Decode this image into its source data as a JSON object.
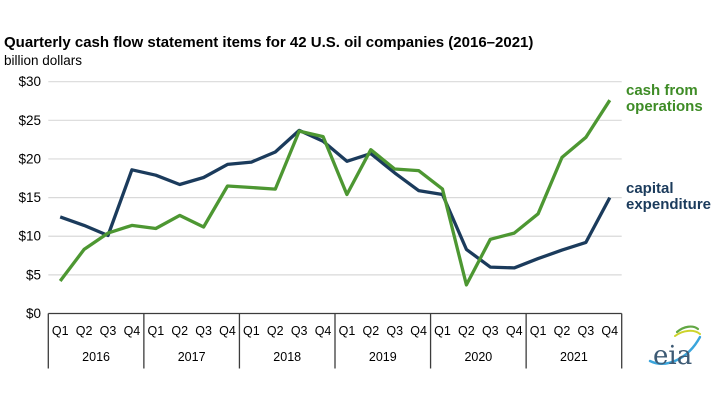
{
  "header": {
    "title": "Quarterly cash flow statement items for 42 U.S. oil companies (2016–2021)",
    "subtitle": "billion dollars"
  },
  "legend": {
    "cash_from_operations": "cash from\noperations",
    "capital_expenditure": "capital\nexpenditure"
  },
  "logo": {
    "text": "eia"
  },
  "colors": {
    "green_line": "#4d9732",
    "green_text": "#3e8c26",
    "navy": "#1b3b5c",
    "gridline": "#d9d9d9",
    "axis": "#3c3c3c",
    "logo_text": "#3d5a74",
    "logo_blue": "#3aa5dc",
    "logo_green": "#62a744",
    "logo_yellow": "#cdd32a"
  },
  "chart_data": {
    "type": "line",
    "title": "Quarterly cash flow statement items for 42 U.S. oil companies (2016–2021)",
    "ylabel": "billion dollars",
    "years": [
      "2016",
      "2017",
      "2018",
      "2019",
      "2020",
      "2021"
    ],
    "quarter_labels": [
      "Q1",
      "Q2",
      "Q3",
      "Q4"
    ],
    "ylim": [
      0,
      30
    ],
    "ytick_step": 5,
    "ytick_labels": [
      "$0",
      "$5",
      "$10",
      "$15",
      "$20",
      "$25",
      "$30"
    ],
    "grid": "horizontal",
    "legend_position": "right",
    "series": [
      {
        "name": "capital expenditure",
        "color": "#1b3b5c",
        "values": [
          12.5,
          11.4,
          10.1,
          18.6,
          17.9,
          16.7,
          17.6,
          19.3,
          19.6,
          20.9,
          23.7,
          22.3,
          19.7,
          20.7,
          18.2,
          15.9,
          15.4,
          8.3,
          6.0,
          5.9,
          7.1,
          8.2,
          9.2,
          15.0
        ]
      },
      {
        "name": "cash from operations",
        "color": "#4d9732",
        "values": [
          4.2,
          8.3,
          10.4,
          11.4,
          11.0,
          12.7,
          11.2,
          16.5,
          16.3,
          16.1,
          23.6,
          22.9,
          15.4,
          21.2,
          18.7,
          18.5,
          16.1,
          3.7,
          9.6,
          10.4,
          12.9,
          20.2,
          22.8,
          27.6
        ]
      }
    ]
  }
}
